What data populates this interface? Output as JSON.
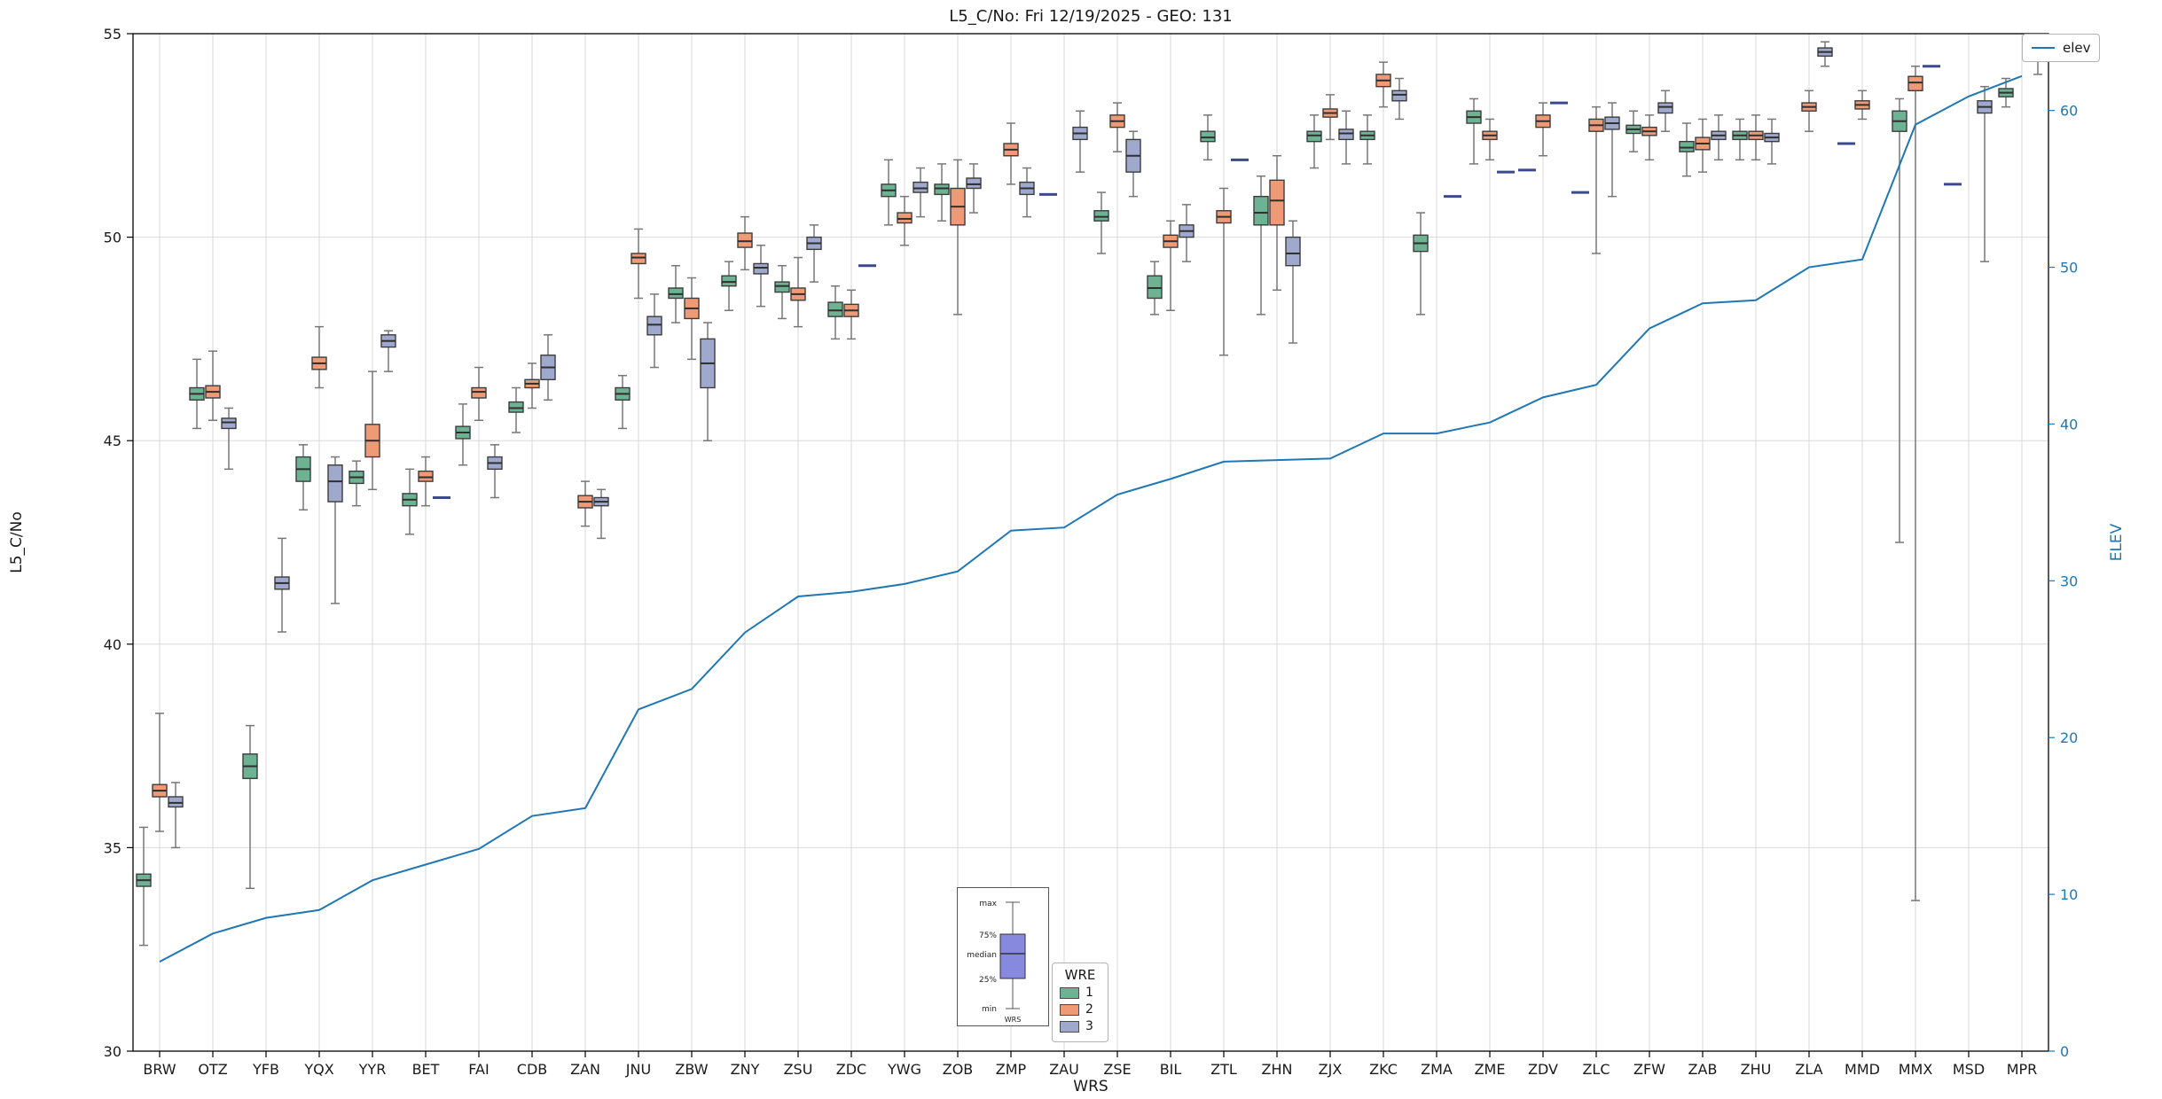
{
  "title": "L5_C/No: Fri 12/19/2025 - GEO: 131",
  "axes": {
    "y_left": {
      "label": "L5_C/No",
      "min": 30,
      "max": 55,
      "ticks": [
        30,
        35,
        40,
        45,
        50,
        55
      ]
    },
    "y_right": {
      "label": "ELEV",
      "min": 0,
      "max": 64.9,
      "ticks": [
        0,
        10,
        20,
        30,
        40,
        50,
        60
      ],
      "color": "#1f77b4"
    },
    "x": {
      "label": "WRS"
    }
  },
  "legend": {
    "line": {
      "label": "elev",
      "color": "#1f77b4"
    },
    "wre": {
      "title": "WRE",
      "entries": [
        {
          "label": "1",
          "color": "#6db393"
        },
        {
          "label": "2",
          "color": "#ef9a76"
        },
        {
          "label": "3",
          "color": "#9fa8cd"
        }
      ]
    }
  },
  "inset": {
    "labels": [
      "max",
      "75%",
      "median",
      "25%",
      "min"
    ],
    "xlabel": "WRS",
    "box_color": "#8789de"
  },
  "style": {
    "grid_color": "#d9d9d9",
    "frame_color": "#000000",
    "whisker_color": "#777777",
    "box_edge_color": "#3c3c3c",
    "median_color": "#2f2f2f",
    "tick_dash_color": "#3a4a8c",
    "text_color": "#1a1a1a"
  },
  "chart_data": {
    "type": "boxplot+line",
    "title": "L5_C/No: Fri 12/19/2025 - GEO: 131",
    "xlabel": "WRS",
    "ylabel_left": "L5_C/No",
    "ylabel_right": "ELEV",
    "ylim_left": [
      30,
      55
    ],
    "ylim_right": [
      0,
      64.9
    ],
    "grid": true,
    "categories": [
      "BRW",
      "OTZ",
      "YFB",
      "YQX",
      "YYR",
      "BET",
      "FAI",
      "CDB",
      "ZAN",
      "JNU",
      "ZBW",
      "ZNY",
      "ZSU",
      "ZDC",
      "YWG",
      "ZOB",
      "ZMP",
      "ZAU",
      "ZSE",
      "BIL",
      "ZTL",
      "ZHN",
      "ZJX",
      "ZKC",
      "ZMA",
      "ZME",
      "ZDV",
      "ZLC",
      "ZFW",
      "ZAB",
      "ZHU",
      "ZLA",
      "MMD",
      "MMX",
      "MSD",
      "MPR"
    ],
    "box_format": [
      "whisker_low",
      "q1",
      "median",
      "q3",
      "whisker_high"
    ],
    "series": [
      {
        "name": "1",
        "color": "#6db393",
        "boxes": [
          [
            32.6,
            34.05,
            34.2,
            34.35,
            35.5
          ],
          [
            45.3,
            46.0,
            46.15,
            46.3,
            47.0
          ],
          [
            34.0,
            36.7,
            37.0,
            37.3,
            38.0
          ],
          [
            43.3,
            44.0,
            44.3,
            44.6,
            44.9
          ],
          [
            43.4,
            43.95,
            44.1,
            44.25,
            44.5
          ],
          [
            42.7,
            43.4,
            43.55,
            43.7,
            44.3
          ],
          [
            44.4,
            45.05,
            45.2,
            45.35,
            45.9
          ],
          [
            45.2,
            45.7,
            45.8,
            45.95,
            46.3
          ],
          null,
          [
            45.3,
            46.0,
            46.15,
            46.3,
            46.6
          ],
          [
            47.9,
            48.5,
            48.6,
            48.75,
            49.3
          ],
          [
            48.2,
            48.8,
            48.9,
            49.05,
            49.4
          ],
          [
            48.0,
            48.65,
            48.8,
            48.9,
            49.3
          ],
          [
            47.5,
            48.05,
            48.2,
            48.4,
            48.8
          ],
          [
            50.3,
            51.0,
            51.15,
            51.3,
            51.9
          ],
          [
            50.4,
            51.05,
            51.2,
            51.3,
            51.8
          ],
          null,
          [
            51.05,
            51.05,
            51.05,
            51.05,
            51.05
          ],
          [
            49.6,
            50.4,
            50.5,
            50.65,
            51.1
          ],
          [
            48.1,
            48.5,
            48.75,
            49.05,
            49.4
          ],
          [
            51.9,
            52.35,
            52.45,
            52.6,
            53.0
          ],
          [
            48.1,
            50.3,
            50.6,
            51.0,
            51.5
          ],
          [
            51.7,
            52.35,
            52.5,
            52.6,
            53.0
          ],
          [
            51.8,
            52.4,
            52.5,
            52.6,
            53.0
          ],
          [
            48.1,
            49.65,
            49.85,
            50.05,
            50.6
          ],
          [
            51.8,
            52.8,
            52.95,
            53.1,
            53.4
          ],
          [
            51.65,
            51.65,
            51.65,
            51.65,
            51.65
          ],
          [
            51.1,
            51.1,
            51.1,
            51.1,
            51.1
          ],
          [
            52.1,
            52.55,
            52.65,
            52.75,
            53.1
          ],
          [
            51.5,
            52.1,
            52.2,
            52.35,
            52.8
          ],
          [
            51.9,
            52.4,
            52.5,
            52.6,
            52.9
          ],
          null,
          [
            52.3,
            52.3,
            52.3,
            52.3,
            52.3
          ],
          [
            42.5,
            52.6,
            52.85,
            53.1,
            53.4
          ],
          [
            51.3,
            51.3,
            51.3,
            51.3,
            51.3
          ],
          [
            53.2,
            53.45,
            53.55,
            53.65,
            53.9
          ]
        ]
      },
      {
        "name": "2",
        "color": "#ef9a76",
        "boxes": [
          [
            35.4,
            36.25,
            36.4,
            36.55,
            38.3
          ],
          [
            45.5,
            46.05,
            46.2,
            46.35,
            47.2
          ],
          null,
          [
            46.3,
            46.75,
            46.9,
            47.05,
            47.8
          ],
          [
            43.8,
            44.6,
            45.0,
            45.4,
            46.7
          ],
          [
            43.4,
            44.0,
            44.1,
            44.25,
            44.6
          ],
          [
            45.5,
            46.05,
            46.2,
            46.3,
            46.8
          ],
          [
            45.8,
            46.3,
            46.4,
            46.5,
            46.9
          ],
          [
            42.9,
            43.35,
            43.5,
            43.65,
            44.0
          ],
          [
            48.5,
            49.35,
            49.5,
            49.6,
            50.2
          ],
          [
            47.0,
            48.0,
            48.25,
            48.5,
            49.0
          ],
          [
            49.2,
            49.75,
            49.9,
            50.1,
            50.5
          ],
          [
            47.8,
            48.45,
            48.6,
            48.75,
            49.5
          ],
          [
            47.5,
            48.05,
            48.2,
            48.35,
            48.7
          ],
          [
            49.8,
            50.35,
            50.45,
            50.6,
            51.0
          ],
          [
            48.1,
            50.3,
            50.75,
            51.2,
            51.9
          ],
          [
            51.3,
            52.0,
            52.15,
            52.3,
            52.8
          ],
          null,
          [
            52.1,
            52.7,
            52.85,
            53.0,
            53.3
          ],
          [
            48.2,
            49.75,
            49.9,
            50.05,
            50.4
          ],
          [
            47.1,
            50.35,
            50.5,
            50.65,
            51.2
          ],
          [
            48.7,
            50.3,
            50.9,
            51.4,
            52.0
          ],
          [
            52.4,
            52.95,
            53.05,
            53.15,
            53.5
          ],
          [
            53.2,
            53.7,
            53.85,
            54.0,
            54.3
          ],
          null,
          [
            51.9,
            52.4,
            52.5,
            52.6,
            52.9
          ],
          [
            52.0,
            52.7,
            52.85,
            53.0,
            53.3
          ],
          [
            49.6,
            52.6,
            52.75,
            52.9,
            53.2
          ],
          [
            51.9,
            52.5,
            52.6,
            52.7,
            53.0
          ],
          [
            51.6,
            52.15,
            52.3,
            52.45,
            52.9
          ],
          [
            51.9,
            52.4,
            52.5,
            52.6,
            53.0
          ],
          [
            52.6,
            53.1,
            53.2,
            53.3,
            53.6
          ],
          [
            52.9,
            53.15,
            53.25,
            53.35,
            53.6
          ],
          [
            33.7,
            53.6,
            53.8,
            53.95,
            54.2
          ],
          null,
          null
        ]
      },
      {
        "name": "3",
        "color": "#9fa8cd",
        "boxes": [
          [
            35.0,
            36.0,
            36.1,
            36.25,
            36.6
          ],
          [
            44.3,
            45.3,
            45.45,
            45.55,
            45.8
          ],
          [
            40.3,
            41.35,
            41.5,
            41.65,
            42.6
          ],
          [
            41.0,
            43.5,
            44.0,
            44.4,
            44.6
          ],
          [
            46.7,
            47.3,
            47.45,
            47.6,
            47.7
          ],
          [
            43.6,
            43.6,
            43.6,
            43.6,
            43.6
          ],
          [
            43.6,
            44.3,
            44.45,
            44.6,
            44.9
          ],
          [
            46.0,
            46.5,
            46.8,
            47.1,
            47.6
          ],
          [
            42.6,
            43.4,
            43.5,
            43.6,
            43.8
          ],
          [
            46.8,
            47.6,
            47.85,
            48.05,
            48.6
          ],
          [
            45.0,
            46.3,
            46.9,
            47.5,
            47.9
          ],
          [
            48.3,
            49.1,
            49.25,
            49.35,
            49.8
          ],
          [
            48.9,
            49.7,
            49.85,
            50.0,
            50.3
          ],
          [
            49.3,
            49.3,
            49.3,
            49.3,
            49.3
          ],
          [
            50.5,
            51.1,
            51.2,
            51.35,
            51.7
          ],
          [
            50.6,
            51.2,
            51.3,
            51.45,
            51.8
          ],
          [
            50.5,
            51.05,
            51.2,
            51.35,
            51.7
          ],
          [
            51.6,
            52.4,
            52.55,
            52.7,
            53.1
          ],
          [
            51.0,
            51.6,
            52.0,
            52.4,
            52.6
          ],
          [
            49.4,
            50.0,
            50.15,
            50.3,
            50.8
          ],
          [
            51.9,
            51.9,
            51.9,
            51.9,
            51.9
          ],
          [
            47.4,
            49.3,
            49.6,
            50.0,
            50.4
          ],
          [
            51.8,
            52.4,
            52.55,
            52.65,
            53.1
          ],
          [
            52.9,
            53.35,
            53.5,
            53.6,
            53.9
          ],
          [
            51.0,
            51.0,
            51.0,
            51.0,
            51.0
          ],
          [
            51.6,
            51.6,
            51.6,
            51.6,
            51.6
          ],
          [
            53.3,
            53.3,
            53.3,
            53.3,
            53.3
          ],
          [
            51.0,
            52.65,
            52.8,
            52.95,
            53.3
          ],
          [
            52.6,
            53.05,
            53.2,
            53.3,
            53.6
          ],
          [
            51.9,
            52.4,
            52.5,
            52.6,
            53.0
          ],
          [
            51.8,
            52.35,
            52.45,
            52.55,
            52.9
          ],
          [
            54.2,
            54.45,
            54.55,
            54.65,
            54.8
          ],
          null,
          [
            54.2,
            54.2,
            54.2,
            54.2,
            54.2
          ],
          [
            49.4,
            53.05,
            53.2,
            53.35,
            53.7
          ],
          [
            54.0,
            54.35,
            54.45,
            54.55,
            54.8
          ]
        ]
      }
    ],
    "elev_line": {
      "name": "elev",
      "color": "#1f77b4",
      "values": [
        5.7,
        7.5,
        8.5,
        9.0,
        10.9,
        11.9,
        12.9,
        15.0,
        15.5,
        21.8,
        23.1,
        26.7,
        29.0,
        29.3,
        29.8,
        30.6,
        33.2,
        33.4,
        35.5,
        36.5,
        37.6,
        37.7,
        37.8,
        39.4,
        39.4,
        40.1,
        41.7,
        42.5,
        46.1,
        47.7,
        47.9,
        50.0,
        50.5,
        59.1,
        60.9,
        62.2
      ]
    }
  }
}
